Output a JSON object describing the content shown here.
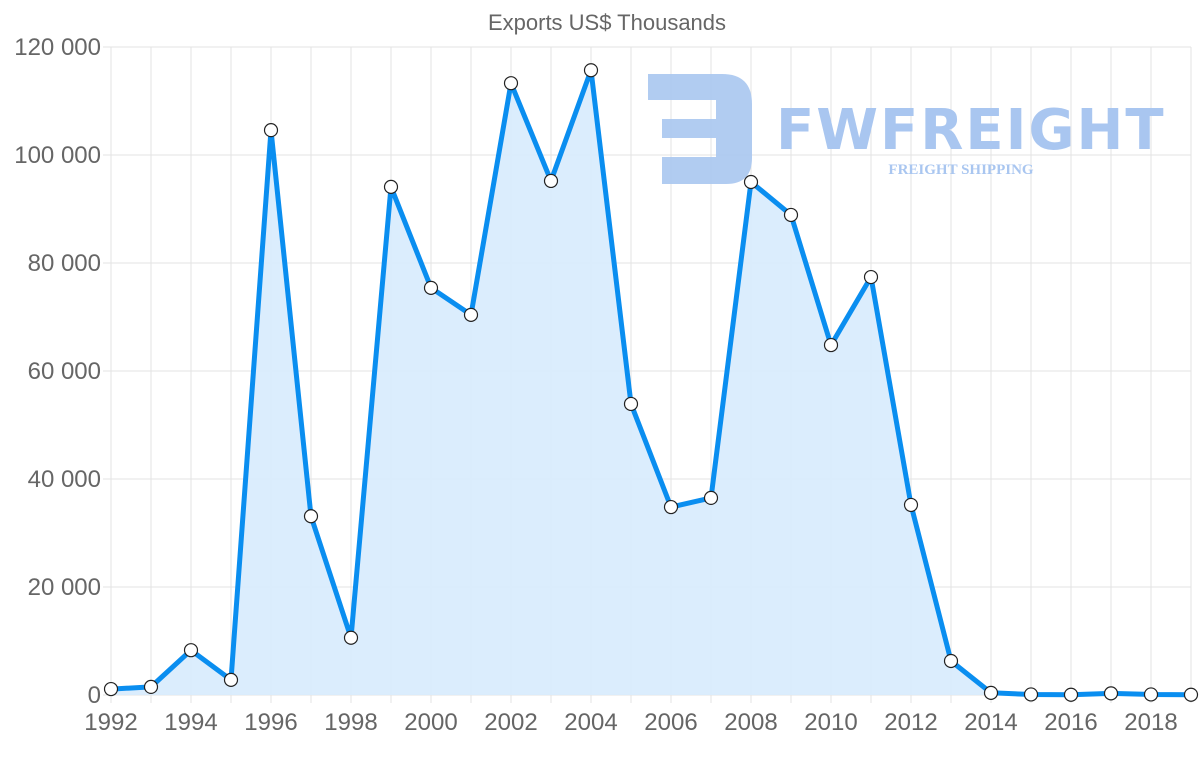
{
  "chart_data": {
    "type": "area",
    "title": "Exports US$ Thousands",
    "xlabel": "",
    "ylabel": "",
    "x": [
      1992,
      1993,
      1994,
      1995,
      1996,
      1997,
      1998,
      1999,
      2000,
      2001,
      2002,
      2003,
      2004,
      2005,
      2006,
      2007,
      2008,
      2009,
      2010,
      2011,
      2012,
      2013,
      2014,
      2015,
      2016,
      2017,
      2018,
      2019
    ],
    "series": [
      {
        "name": "Exports US$ Thousands",
        "values": [
          1100,
          1500,
          8300,
          2800,
          104600,
          33100,
          10600,
          94100,
          75400,
          70400,
          113300,
          95200,
          115700,
          53900,
          34800,
          36500,
          95000,
          88900,
          64800,
          77400,
          35200,
          6300,
          400,
          100,
          50,
          300,
          100,
          50
        ]
      }
    ],
    "x_tick_labels": [
      "1992",
      "1994",
      "1996",
      "1998",
      "2000",
      "2002",
      "2004",
      "2006",
      "2008",
      "2010",
      "2012",
      "2014",
      "2016",
      "2018"
    ],
    "y_tick_labels": [
      "0",
      "20 000",
      "40 000",
      "60 000",
      "80 000",
      "100 000",
      "120 000"
    ],
    "y_ticks": [
      0,
      20000,
      40000,
      60000,
      80000,
      100000,
      120000
    ],
    "xlim": [
      1992,
      2019
    ],
    "ylim": [
      0,
      120000
    ],
    "grid": true,
    "legend": "none",
    "colors": {
      "line": "#0a8ef0",
      "fill": "#d9ecfd",
      "point_fill": "#ffffff",
      "point_stroke": "#222222",
      "grid": "#e3e3e3",
      "text": "#666666"
    }
  },
  "watermark": {
    "brand": "FWFREIGHT",
    "tagline": "FREIGHT SHIPPING",
    "color": "#a9c6f0"
  }
}
